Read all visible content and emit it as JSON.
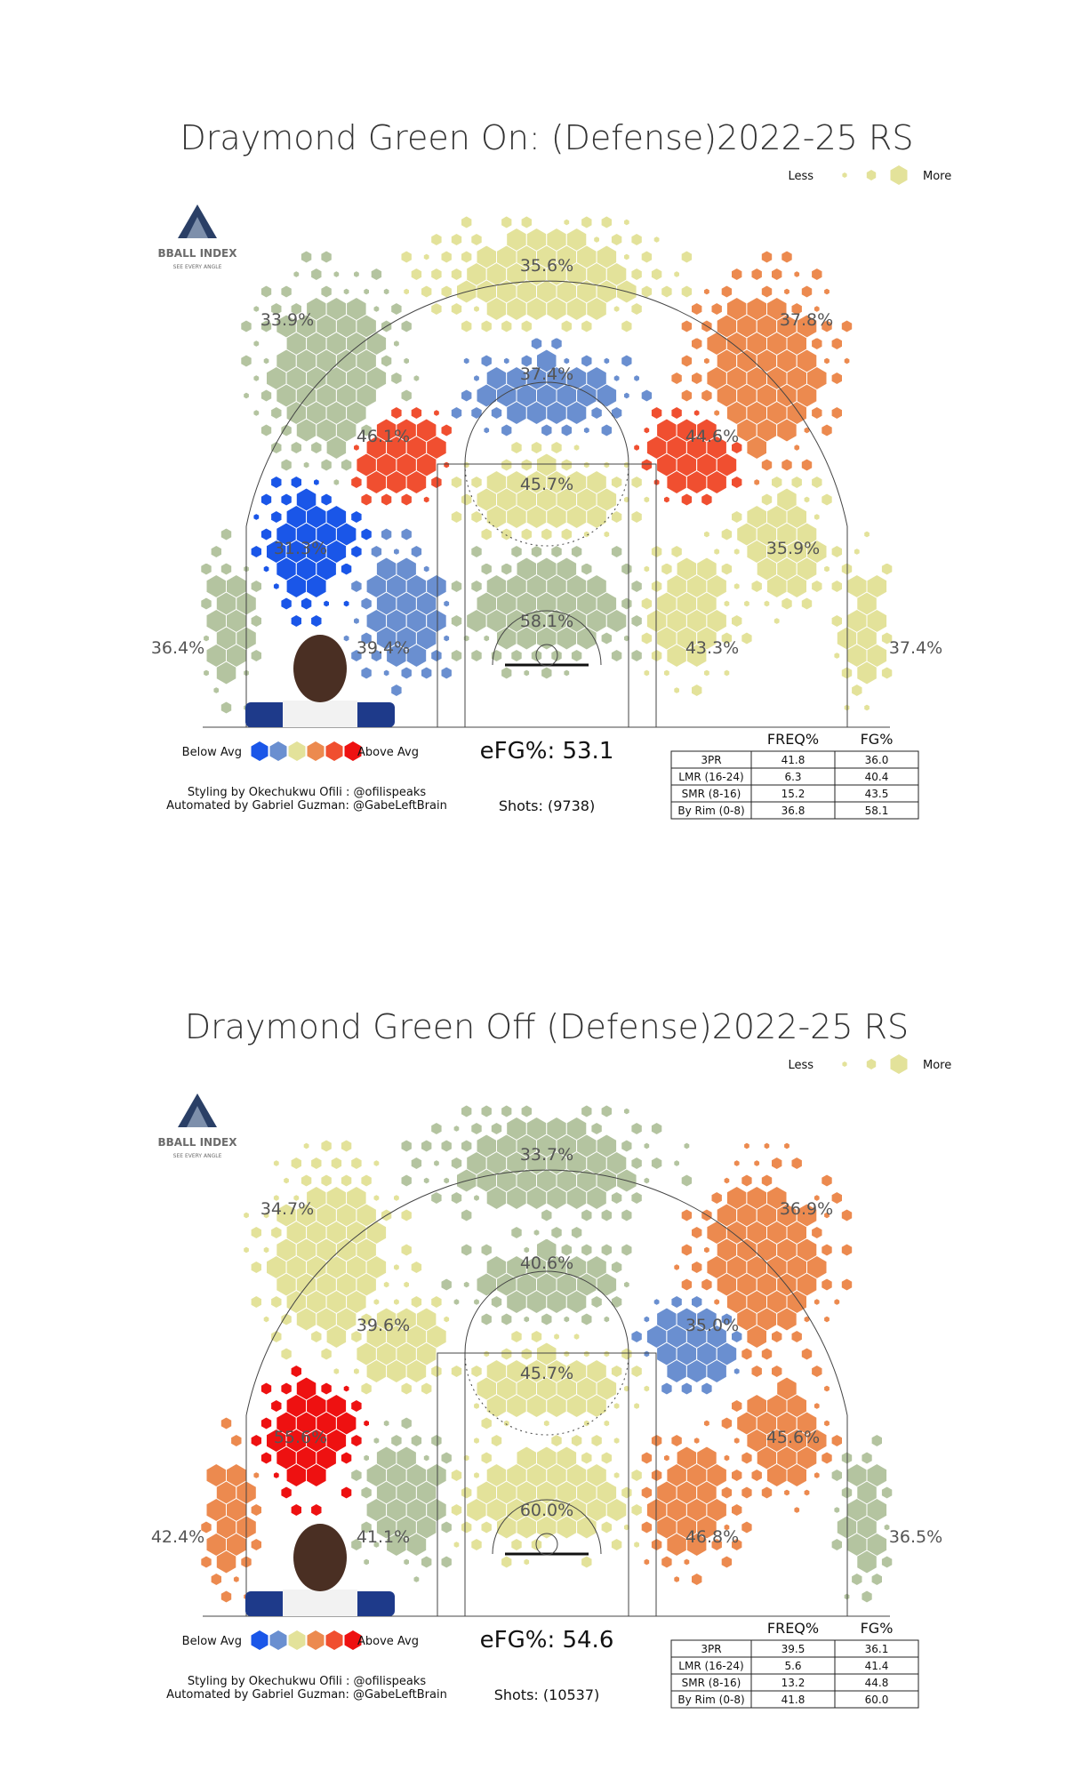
{
  "colors": {
    "below2": "#1a56e8",
    "below1": "#6a8fd0",
    "avg": "#e3e29a",
    "avg_alt": "#b4c4a0",
    "above1": "#ec8a4f",
    "above2": "#f04f30",
    "above3": "#ee1111"
  },
  "charts": [
    {
      "title": "Draymond Green On: (Defense)2022-25 RS",
      "legend_size": {
        "less": "Less",
        "more": "More"
      },
      "legend_color": {
        "below": "Below Avg",
        "above": "Above Avg"
      },
      "credits": [
        "Styling by Okechukwu Ofili : @ofilispeaks",
        "Automated by Gabriel Guzman: @GabeLeftBrain"
      ],
      "efg": "eFG%: 53.1",
      "shots": "Shots: (9738)",
      "logo": {
        "name": "BBALL INDEX",
        "tagline": "SEE EVERY ANGLE"
      },
      "zones": [
        {
          "label": "35.6%",
          "color": "avg"
        },
        {
          "label": "33.9%",
          "color": "avg_alt"
        },
        {
          "label": "37.8%",
          "color": "above1"
        },
        {
          "label": "37.4%",
          "color": "below1"
        },
        {
          "label": "46.1%",
          "color": "above2"
        },
        {
          "label": "44.6%",
          "color": "above2"
        },
        {
          "label": "45.7%",
          "color": "avg"
        },
        {
          "label": "31.3%",
          "color": "below2"
        },
        {
          "label": "35.9%",
          "color": "avg"
        },
        {
          "label": "58.1%",
          "color": "avg_alt"
        },
        {
          "label": "36.4%",
          "color": "avg_alt"
        },
        {
          "label": "39.4%",
          "color": "below1"
        },
        {
          "label": "43.3%",
          "color": "avg"
        },
        {
          "label": "37.4%",
          "color": "avg"
        }
      ],
      "table": {
        "headers": [
          "FREQ%",
          "FG%"
        ],
        "rows": [
          {
            "zone": "3PR",
            "freq": "41.8",
            "fg": "36.0"
          },
          {
            "zone": "LMR (16-24)",
            "freq": "6.3",
            "fg": "40.4"
          },
          {
            "zone": "SMR (8-16)",
            "freq": "15.2",
            "fg": "43.5"
          },
          {
            "zone": "By Rim (0-8)",
            "freq": "36.8",
            "fg": "58.1"
          }
        ]
      }
    },
    {
      "title": "Draymond Green Off (Defense)2022-25 RS",
      "legend_size": {
        "less": "Less",
        "more": "More"
      },
      "legend_color": {
        "below": "Below Avg",
        "above": "Above Avg"
      },
      "credits": [
        "Styling by Okechukwu Ofili : @ofilispeaks",
        "Automated by Gabriel Guzman: @GabeLeftBrain"
      ],
      "efg": "eFG%: 54.6",
      "shots": "Shots: (10537)",
      "logo": {
        "name": "BBALL INDEX",
        "tagline": "SEE EVERY ANGLE"
      },
      "zones": [
        {
          "label": "33.7%",
          "color": "avg_alt"
        },
        {
          "label": "34.7%",
          "color": "avg"
        },
        {
          "label": "36.9%",
          "color": "above1"
        },
        {
          "label": "40.6%",
          "color": "avg_alt"
        },
        {
          "label": "39.6%",
          "color": "avg"
        },
        {
          "label": "35.0%",
          "color": "below1"
        },
        {
          "label": "45.7%",
          "color": "avg"
        },
        {
          "label": "55.6%",
          "color": "above3"
        },
        {
          "label": "45.6%",
          "color": "above1"
        },
        {
          "label": "60.0%",
          "color": "avg"
        },
        {
          "label": "42.4%",
          "color": "above1"
        },
        {
          "label": "41.1%",
          "color": "avg_alt"
        },
        {
          "label": "46.8%",
          "color": "above1"
        },
        {
          "label": "36.5%",
          "color": "avg_alt"
        }
      ],
      "table": {
        "headers": [
          "FREQ%",
          "FG%"
        ],
        "rows": [
          {
            "zone": "3PR",
            "freq": "39.5",
            "fg": "36.1"
          },
          {
            "zone": "LMR (16-24)",
            "freq": "5.6",
            "fg": "41.4"
          },
          {
            "zone": "SMR (8-16)",
            "freq": "13.2",
            "fg": "44.8"
          },
          {
            "zone": "By Rim (0-8)",
            "freq": "41.8",
            "fg": "60.0"
          }
        ]
      }
    }
  ],
  "chart_data": [
    {
      "type": "heatmap",
      "title": "Draymond Green On: (Defense)2022-25 RS",
      "efg_pct": 53.1,
      "shots": 9738,
      "zone_fg_pct": [
        35.6,
        33.9,
        37.8,
        37.4,
        46.1,
        44.6,
        45.7,
        31.3,
        35.9,
        58.1,
        36.4,
        39.4,
        43.3,
        37.4
      ],
      "table": {
        "zones": [
          "3PR",
          "LMR (16-24)",
          "SMR (8-16)",
          "By Rim (0-8)"
        ],
        "freq_pct": [
          41.8,
          6.3,
          15.2,
          36.8
        ],
        "fg_pct": [
          36.0,
          40.4,
          43.5,
          58.1
        ]
      }
    },
    {
      "type": "heatmap",
      "title": "Draymond Green Off (Defense)2022-25 RS",
      "efg_pct": 54.6,
      "shots": 10537,
      "zone_fg_pct": [
        33.7,
        34.7,
        36.9,
        40.6,
        39.6,
        35.0,
        45.7,
        55.6,
        45.6,
        60.0,
        42.4,
        41.1,
        46.8,
        36.5
      ],
      "table": {
        "zones": [
          "3PR",
          "LMR (16-24)",
          "SMR (8-16)",
          "By Rim (0-8)"
        ],
        "freq_pct": [
          39.5,
          5.6,
          13.2,
          41.8
        ],
        "fg_pct": [
          36.1,
          41.4,
          44.8,
          60.0
        ]
      }
    }
  ]
}
